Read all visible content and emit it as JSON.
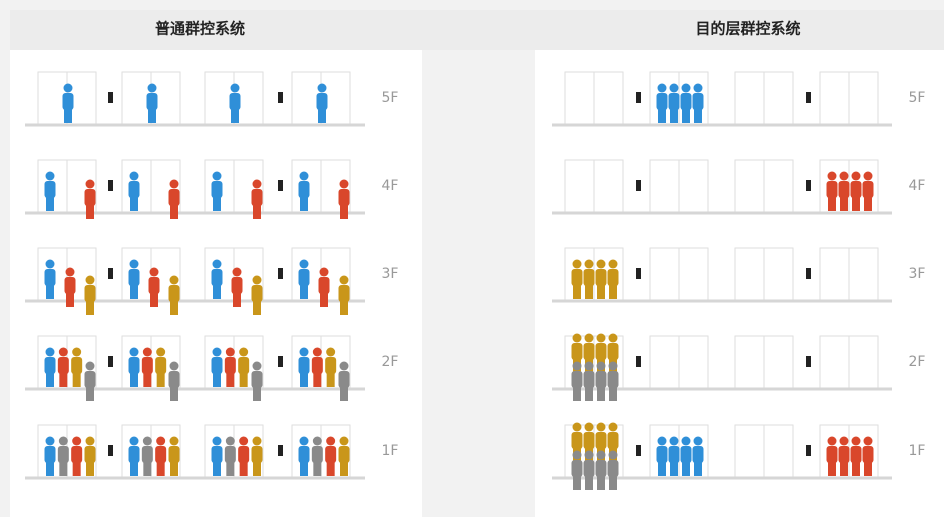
{
  "panels": [
    {
      "title": "普通群控系统",
      "floors": [
        "5F",
        "4F",
        "3F",
        "2F",
        "1F"
      ]
    },
    {
      "title": "目的层群控系统",
      "floors": [
        "5F",
        "4F",
        "3F",
        "2F",
        "1F"
      ]
    }
  ]
}
